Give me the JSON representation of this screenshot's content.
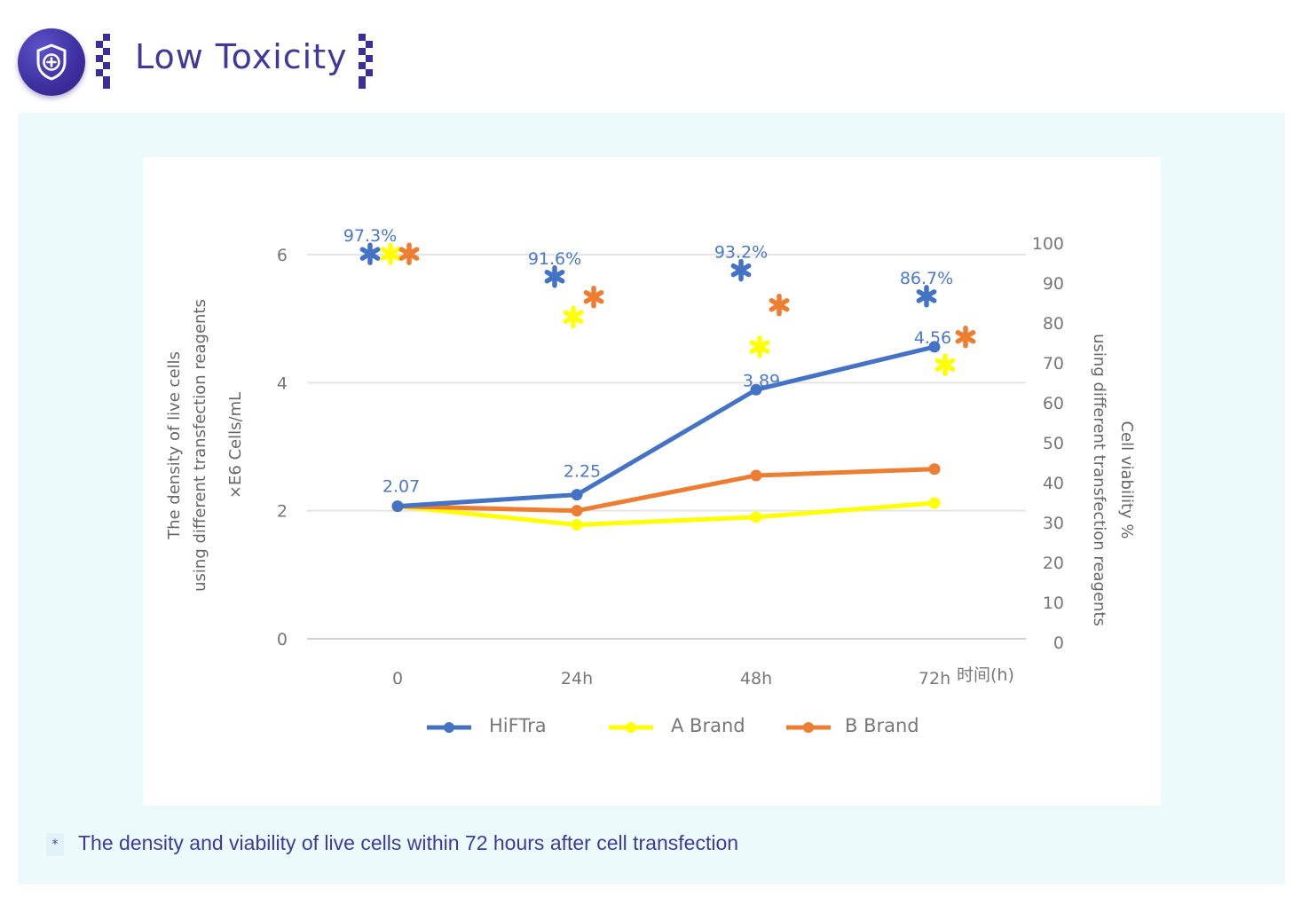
{
  "header": {
    "title": "Low Toxicity",
    "icon": "shield-plus-icon",
    "accent": "#3f3a9a"
  },
  "caption": {
    "bullet": "*",
    "text": "The density and viability of live cells within 72 hours after cell transfection"
  },
  "chart_data": {
    "type": "line",
    "categories": [
      "0",
      "24h",
      "48h",
      "72h"
    ],
    "x_unit_label": "时间(h)",
    "ylabel_left": [
      "The density of live cells",
      "using different transfection reagents",
      "×E6 Cells/mL"
    ],
    "ylabel_right": [
      "Cell viability %",
      "using different transfection reagents"
    ],
    "ylim_left": [
      0,
      6
    ],
    "yticks_left": [
      0,
      2,
      4,
      6
    ],
    "ylim_right": [
      0,
      100
    ],
    "yticks_right": [
      0,
      10,
      20,
      30,
      40,
      50,
      60,
      70,
      80,
      90,
      100
    ],
    "grid": true,
    "legend_position": "bottom",
    "series": [
      {
        "name": "HiFTra",
        "color": "#4472c4",
        "values": [
          2.07,
          2.25,
          3.89,
          4.56
        ],
        "value_labels": [
          "2.07",
          "2.25",
          "3.89",
          "4.56"
        ],
        "viability": [
          97.3,
          91.6,
          93.2,
          86.7
        ],
        "viability_labels": [
          "97.3%",
          "91.6%",
          "93.2%",
          "86.7%"
        ]
      },
      {
        "name": "A Brand",
        "color": "#ffff00",
        "values": [
          2.07,
          1.78,
          1.9,
          2.12
        ],
        "viability": [
          97.3,
          81.5,
          74.0,
          69.5
        ]
      },
      {
        "name": "B Brand",
        "color": "#ed7d31",
        "values": [
          2.07,
          2.0,
          2.55,
          2.65
        ],
        "viability": [
          97.3,
          86.5,
          84.5,
          76.5
        ]
      }
    ]
  }
}
